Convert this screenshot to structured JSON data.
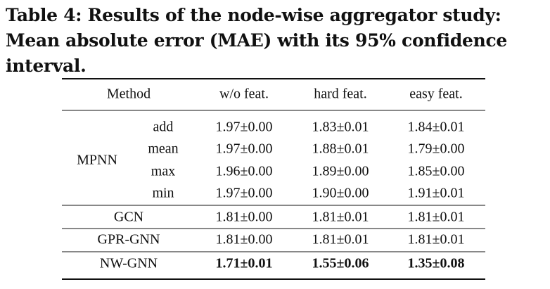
{
  "caption": "Table 4: Results of the node-wise aggregator study: Mean absolute error (MAE) with its 95% confidence interval.",
  "table": {
    "header": [
      "Method",
      "w/o feat.",
      "hard feat.",
      "easy feat."
    ],
    "group": {
      "label": "MPNN",
      "rows": [
        [
          "add",
          "1.97±0.00",
          "1.83±0.01",
          "1.84±0.01"
        ],
        [
          "mean",
          "1.97±0.00",
          "1.88±0.01",
          "1.79±0.00"
        ],
        [
          "max",
          "1.96±0.00",
          "1.89±0.00",
          "1.85±0.00"
        ],
        [
          "min",
          "1.97±0.00",
          "1.90±0.00",
          "1.91±0.01"
        ]
      ]
    },
    "rows": [
      [
        "GCN",
        "1.81±0.00",
        "1.81±0.01",
        "1.81±0.01"
      ],
      [
        "GPR-GNN",
        "1.81±0.00",
        "1.81±0.01",
        "1.81±0.01"
      ],
      [
        "NW-GNN",
        "1.71±0.01",
        "1.55±0.06",
        "1.35±0.08"
      ]
    ]
  }
}
